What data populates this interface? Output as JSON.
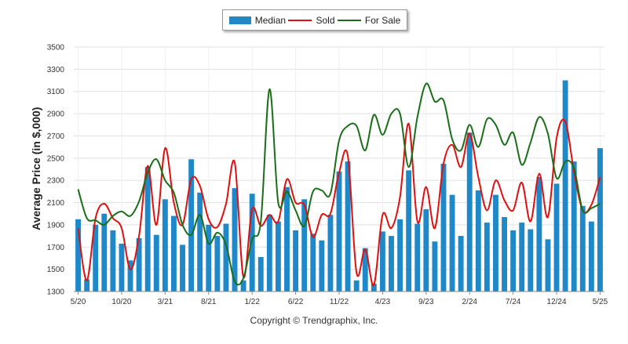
{
  "legend": {
    "median": "Median",
    "sold": "Sold",
    "for_sale": "For Sale"
  },
  "ylabel": "Average Price (in $,000)",
  "credit": "Copyright © Trendgraphix, Inc.",
  "colors": {
    "median": "#1e88c8",
    "sold": "#e01010",
    "for_sale": "#1a6e1a",
    "grid": "#e0e0e0"
  },
  "chart_data": {
    "type": "bar",
    "ylim": [
      1300,
      3500
    ],
    "yticks": [
      1300,
      1500,
      1700,
      1900,
      2100,
      2300,
      2500,
      2700,
      2900,
      3100,
      3300,
      3500
    ],
    "x_tick_labels": [
      {
        "index": 0,
        "label": "5/20"
      },
      {
        "index": 5,
        "label": "10/20"
      },
      {
        "index": 10,
        "label": "3/21"
      },
      {
        "index": 15,
        "label": "8/21"
      },
      {
        "index": 20,
        "label": "1/22"
      },
      {
        "index": 25,
        "label": "6/22"
      },
      {
        "index": 30,
        "label": "11/22"
      },
      {
        "index": 35,
        "label": "4/23"
      },
      {
        "index": 40,
        "label": "9/23"
      },
      {
        "index": 45,
        "label": "2/24"
      },
      {
        "index": 50,
        "label": "7/24"
      },
      {
        "index": 55,
        "label": "12/24"
      },
      {
        "index": 60,
        "label": "5/25"
      }
    ],
    "series": [
      {
        "name": "Median",
        "kind": "bar",
        "values": [
          1950,
          1410,
          1900,
          2000,
          1850,
          1730,
          1580,
          1780,
          2420,
          1810,
          2130,
          1980,
          1720,
          2490,
          2190,
          1900,
          1800,
          1910,
          2230,
          1400,
          2180,
          1610,
          1990,
          1930,
          2240,
          1850,
          2130,
          1820,
          1760,
          1990,
          2380,
          2470,
          1400,
          1690,
          1370,
          1840,
          1800,
          1950,
          2390,
          1910,
          2040,
          1750,
          2450,
          2170,
          1800,
          2730,
          2210,
          1920,
          2170,
          1970,
          1850,
          1920,
          1860,
          2330,
          1770,
          2270,
          3200,
          2470,
          2070,
          1930,
          2590
        ]
      },
      {
        "name": "Sold",
        "kind": "line",
        "values": [
          1870,
          1400,
          1960,
          2090,
          1960,
          1870,
          1500,
          1800,
          2430,
          1900,
          2590,
          2100,
          1900,
          2310,
          2250,
          1950,
          1880,
          2090,
          2460,
          1430,
          2040,
          1890,
          1990,
          1930,
          2310,
          2100,
          2080,
          1790,
          1990,
          2000,
          2370,
          2520,
          1470,
          1680,
          1360,
          1990,
          1870,
          2150,
          2810,
          1930,
          2240,
          1870,
          2450,
          2620,
          2420,
          2720,
          2330,
          2030,
          2300,
          2120,
          2030,
          2280,
          1930,
          2360,
          1970,
          2680,
          2830,
          2380,
          2030,
          2080,
          2330
        ]
      },
      {
        "name": "For Sale",
        "kind": "line",
        "values": [
          2220,
          1960,
          1940,
          1900,
          1980,
          2020,
          1980,
          2110,
          2370,
          2490,
          2300,
          2190,
          1900,
          1810,
          1990,
          1730,
          1830,
          1720,
          1390,
          1420,
          1770,
          1930,
          3120,
          2100,
          2200,
          2030,
          1890,
          2200,
          2210,
          2180,
          2660,
          2790,
          2790,
          2570,
          2890,
          2710,
          2900,
          2900,
          2420,
          2870,
          3170,
          3010,
          3020,
          2670,
          2570,
          2800,
          2600,
          2850,
          2800,
          2620,
          2730,
          2440,
          2640,
          2870,
          2720,
          2320,
          2470,
          2410,
          2030,
          2050,
          2090
        ]
      }
    ]
  }
}
